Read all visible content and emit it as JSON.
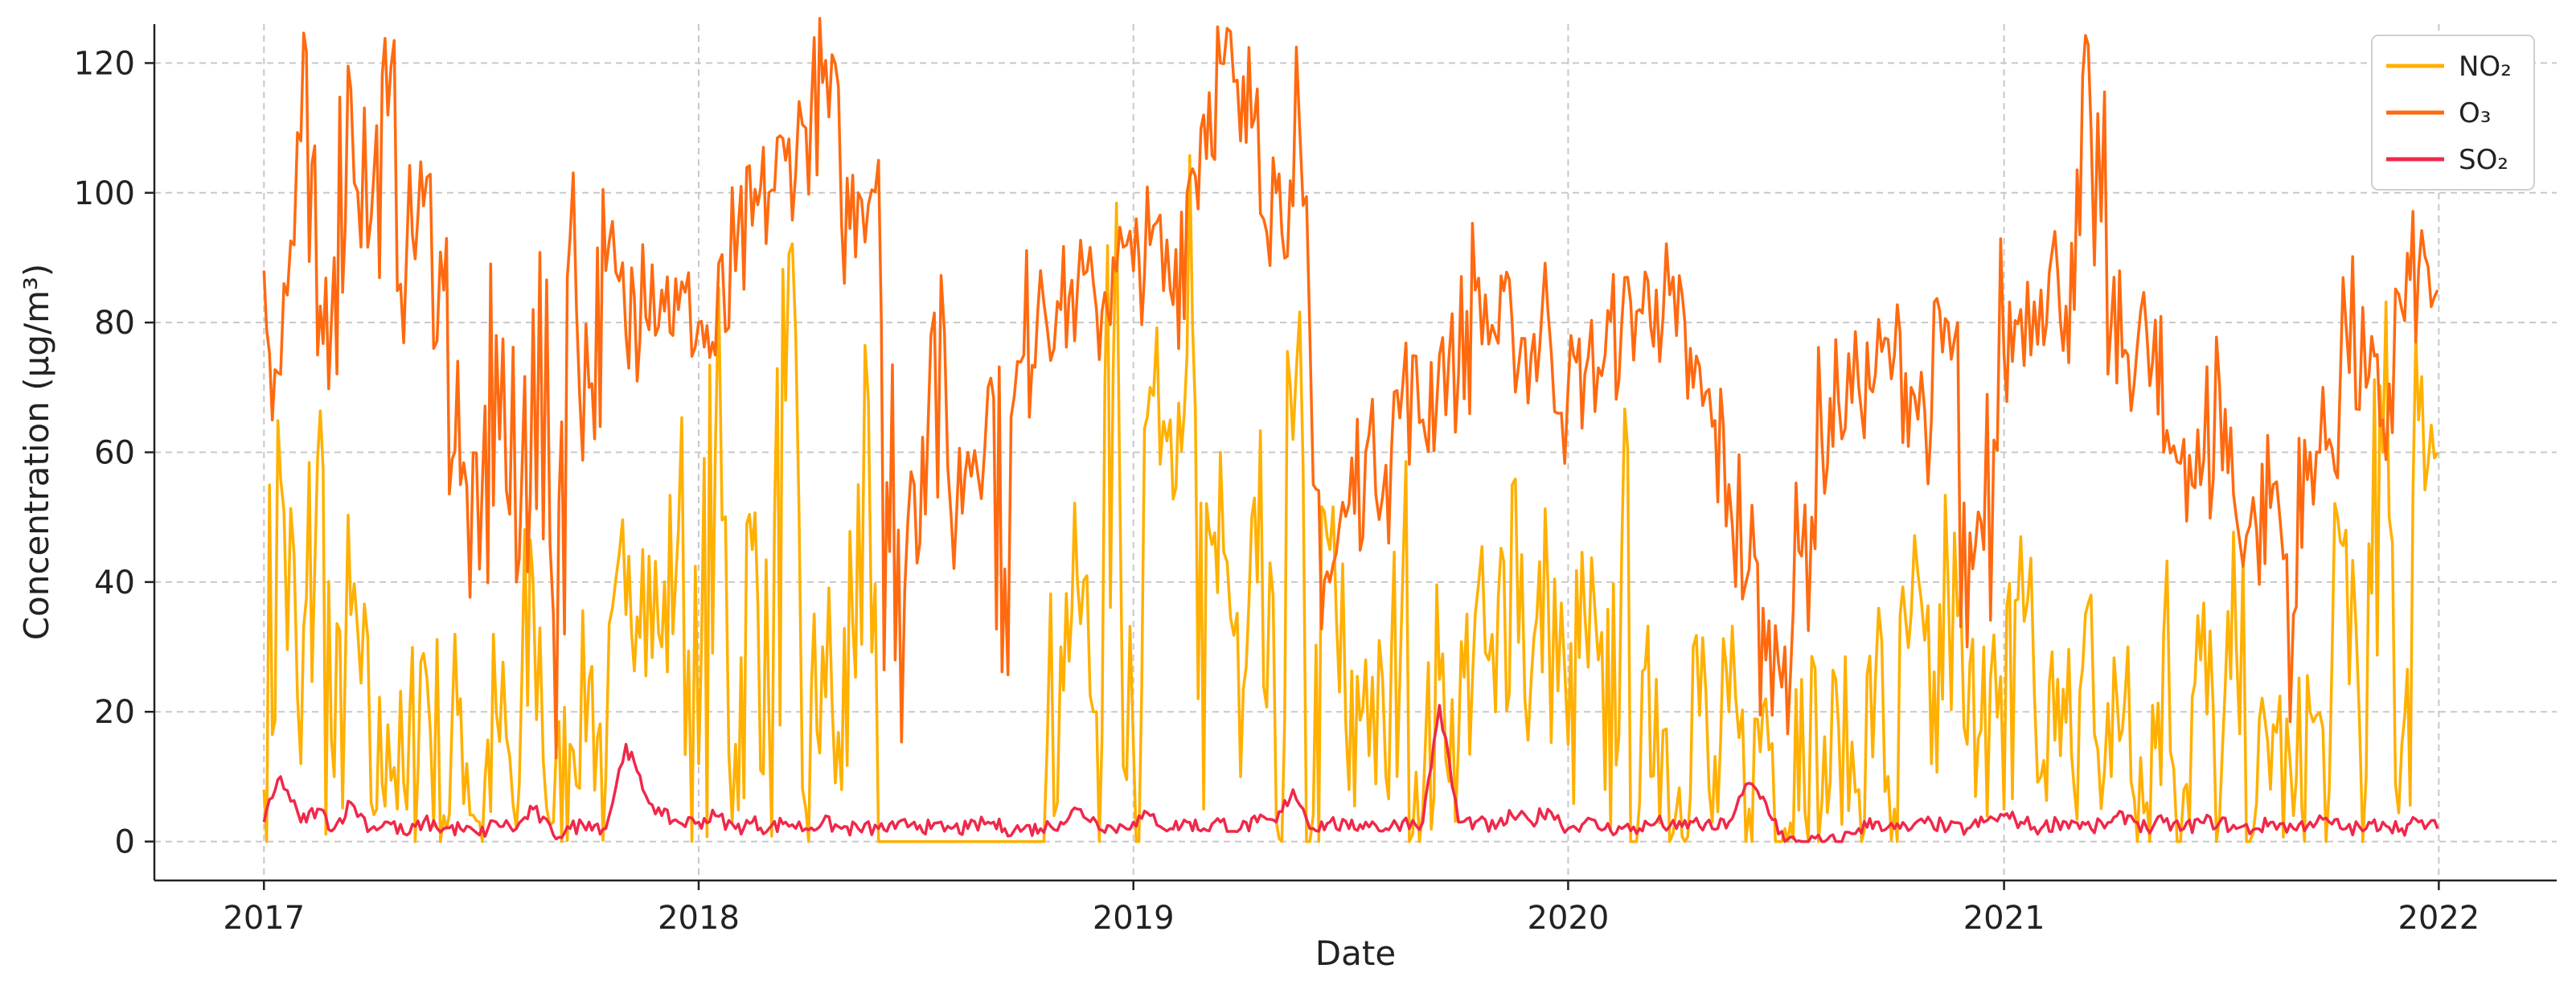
{
  "chart_data": {
    "type": "line",
    "title": "",
    "xlabel": "Date",
    "ylabel": "Concentration (μg/m³)",
    "x_type": "date",
    "xlim": [
      "2016-10-01",
      "2022-04-10"
    ],
    "ylim": [
      -6,
      126
    ],
    "x_ticks": [
      {
        "date": "2017-01-01",
        "label": "2017"
      },
      {
        "date": "2018-01-01",
        "label": "2018"
      },
      {
        "date": "2019-01-01",
        "label": "2019"
      },
      {
        "date": "2020-01-01",
        "label": "2020"
      },
      {
        "date": "2021-01-01",
        "label": "2021"
      },
      {
        "date": "2022-01-01",
        "label": "2022"
      }
    ],
    "y_ticks": [
      0,
      20,
      40,
      60,
      80,
      100,
      120
    ],
    "grid": true,
    "legend": {
      "position": "top-right"
    },
    "x": [
      "2017-01-01",
      "2017-01-15",
      "2017-02-01",
      "2017-02-15",
      "2017-03-01",
      "2017-03-15",
      "2017-04-01",
      "2017-04-15",
      "2017-05-01",
      "2017-05-15",
      "2017-06-01",
      "2017-06-15",
      "2017-07-01",
      "2017-07-15",
      "2017-08-01",
      "2017-08-15",
      "2017-09-01",
      "2017-09-15",
      "2017-10-01",
      "2017-10-15",
      "2017-11-01",
      "2017-11-15",
      "2017-12-01",
      "2017-12-15",
      "2018-01-01",
      "2018-01-15",
      "2018-02-01",
      "2018-02-15",
      "2018-03-01",
      "2018-03-15",
      "2018-04-01",
      "2018-04-15",
      "2018-05-01",
      "2018-05-15",
      "2018-06-01",
      "2018-06-15",
      "2018-07-01",
      "2018-07-15",
      "2018-08-01",
      "2018-08-15",
      "2018-09-01",
      "2018-09-15",
      "2018-10-01",
      "2018-10-15",
      "2018-11-01",
      "2018-11-15",
      "2018-12-01",
      "2018-12-15",
      "2019-01-01",
      "2019-01-15",
      "2019-02-01",
      "2019-02-15",
      "2019-03-01",
      "2019-03-15",
      "2019-04-01",
      "2019-04-15",
      "2019-05-01",
      "2019-05-15",
      "2019-06-01",
      "2019-06-15",
      "2019-07-01",
      "2019-07-15",
      "2019-08-01",
      "2019-08-15",
      "2019-09-01",
      "2019-09-15",
      "2019-10-01",
      "2019-10-15",
      "2019-11-01",
      "2019-11-15",
      "2019-12-01",
      "2019-12-15",
      "2020-01-01",
      "2020-01-15",
      "2020-02-01",
      "2020-02-15",
      "2020-03-01",
      "2020-03-15",
      "2020-04-01",
      "2020-04-15",
      "2020-05-01",
      "2020-05-15",
      "2020-06-01",
      "2020-06-15",
      "2020-07-01",
      "2020-07-15",
      "2020-08-01",
      "2020-08-15",
      "2020-09-01",
      "2020-09-15",
      "2020-10-01",
      "2020-10-15",
      "2020-11-01",
      "2020-11-15",
      "2020-12-01",
      "2020-12-15",
      "2021-01-01",
      "2021-01-15",
      "2021-02-01",
      "2021-02-15",
      "2021-03-01",
      "2021-03-15",
      "2021-04-01",
      "2021-04-15",
      "2021-05-01",
      "2021-05-15",
      "2021-06-01",
      "2021-06-15",
      "2021-07-01",
      "2021-07-15",
      "2021-08-01",
      "2021-08-15",
      "2021-09-01",
      "2021-09-15",
      "2021-10-01",
      "2021-10-15",
      "2021-11-01",
      "2021-11-15",
      "2021-12-01",
      "2021-12-15",
      "2021-12-31"
    ],
    "series": [
      {
        "name": "NO₂",
        "color": "#FFB000",
        "values": [
          8,
          56,
          12,
          59,
          10,
          35,
          6,
          18,
          5,
          29,
          4,
          22,
          3,
          20,
          2,
          40,
          3,
          15,
          25,
          10,
          35,
          45,
          30,
          48,
          12,
          60,
          15,
          45,
          20,
          68,
          5,
          30,
          8,
          55,
          0,
          0,
          0,
          0,
          0,
          0,
          0,
          0,
          0,
          0,
          30,
          40,
          20,
          72,
          15,
          70,
          65,
          75,
          5,
          60,
          10,
          40,
          3,
          62,
          4,
          45,
          8,
          28,
          10,
          40,
          5,
          25,
          15,
          35,
          20,
          55,
          25,
          40,
          15,
          35,
          8,
          45,
          6,
          25,
          5,
          30,
          3,
          20,
          5,
          22,
          2,
          25,
          6,
          18,
          8,
          25,
          5,
          35,
          12,
          40,
          15,
          30,
          5,
          47,
          10,
          25,
          8,
          38,
          10,
          30,
          6,
          32,
          8,
          28,
          4,
          30,
          6,
          18,
          4,
          20,
          8,
          48,
          10,
          60,
          15,
          65,
          60
        ]
      },
      {
        "name": "O₃",
        "color": "#FF6A10",
        "values": [
          88,
          72,
          108,
          75,
          90,
          116,
          96,
          112,
          92,
          98,
          85,
          55,
          42,
          78,
          40,
          82,
          35,
          93,
          70,
          88,
          78,
          92,
          85,
          82,
          80,
          75,
          88,
          95,
          100,
          105,
          110,
          117,
          95,
          100,
          105,
          28,
          55,
          78,
          50,
          60,
          70,
          42,
          75,
          88,
          82,
          85,
          82,
          90,
          88,
          92,
          85,
          100,
          112,
          120,
          108,
          116,
          100,
          98,
          55,
          40,
          52,
          60,
          58,
          70,
          65,
          75,
          72,
          85,
          78,
          80,
          75,
          82,
          70,
          72,
          75,
          80,
          82,
          85,
          78,
          70,
          64,
          55,
          42,
          28,
          30,
          44,
          62,
          68,
          70,
          72,
          75,
          70,
          65,
          80,
          30,
          45,
          75,
          82,
          85,
          88,
          82,
          110,
          80,
          75,
          78,
          60,
          62,
          55,
          70,
          50,
          48,
          55,
          35,
          60,
          62,
          80,
          70,
          65,
          82,
          88,
          85
        ]
      },
      {
        "name": "SO₂",
        "color": "#F0284A",
        "values": [
          3,
          10,
          3,
          5,
          2,
          6,
          2,
          3,
          1,
          3,
          2,
          2,
          1,
          3,
          2,
          5,
          1,
          2,
          3,
          2,
          15,
          8,
          4,
          3,
          3,
          4,
          2,
          3,
          2,
          3,
          2,
          3,
          2,
          2,
          2,
          2,
          3,
          2,
          2,
          2,
          3,
          2,
          2,
          2,
          3,
          5,
          3,
          2,
          3,
          4,
          2,
          3,
          2,
          3,
          2,
          3,
          3,
          8,
          2,
          3,
          2,
          3,
          2,
          3,
          3,
          21,
          3,
          3,
          2,
          4,
          3,
          5,
          2,
          3,
          2,
          2,
          2,
          3,
          2,
          3,
          2,
          3,
          9,
          6,
          0,
          0,
          0,
          0,
          2,
          3,
          2,
          2,
          3,
          2,
          2,
          3,
          4,
          3,
          2,
          3,
          3,
          2,
          3,
          4,
          2,
          3,
          2,
          3,
          3,
          2,
          2,
          3,
          2,
          3,
          3,
          2,
          2,
          3,
          2,
          3,
          2
        ]
      }
    ]
  }
}
